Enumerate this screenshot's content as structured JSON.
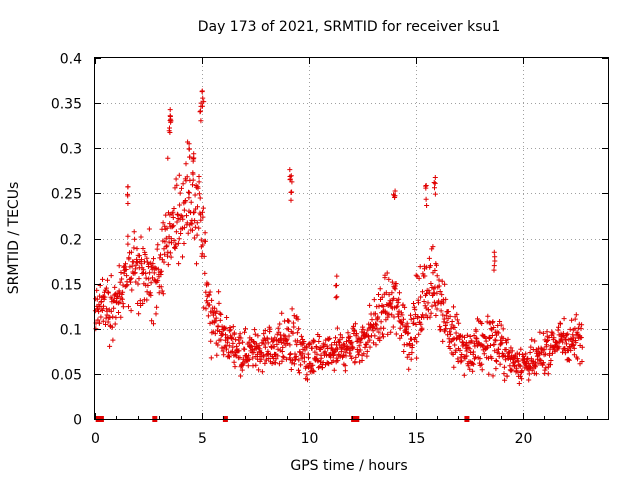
{
  "chart_data": {
    "type": "scatter",
    "title": "Day 173 of 2021, SRMTID for receiver ksu1",
    "xlabel": "GPS time / hours",
    "ylabel": "SRMTID / TECUs",
    "xlim": [
      0,
      24
    ],
    "ylim": [
      0,
      0.4
    ],
    "x_ticks": [
      0,
      5,
      10,
      15,
      20
    ],
    "x_tick_labels": [
      "0",
      "5",
      "10",
      "15",
      "20"
    ],
    "y_ticks": [
      0,
      0.05,
      0.1,
      0.15,
      0.2,
      0.25,
      0.3,
      0.35,
      0.4
    ],
    "y_tick_labels": [
      "0",
      "0.05",
      "0.1",
      "0.15",
      "0.2",
      "0.25",
      "0.3",
      "0.35",
      "0.4"
    ],
    "grid": true,
    "series_color": "#e00000",
    "marker": "plus",
    "trend": [
      {
        "x": 0.0,
        "y": 0.12,
        "spread": 0.03
      },
      {
        "x": 1.0,
        "y": 0.13,
        "spread": 0.04
      },
      {
        "x": 1.5,
        "y": 0.16,
        "spread": 0.05
      },
      {
        "x": 2.5,
        "y": 0.16,
        "spread": 0.05
      },
      {
        "x": 3.0,
        "y": 0.15,
        "spread": 0.06
      },
      {
        "x": 3.5,
        "y": 0.22,
        "spread": 0.07
      },
      {
        "x": 4.3,
        "y": 0.24,
        "spread": 0.06
      },
      {
        "x": 4.9,
        "y": 0.22,
        "spread": 0.07
      },
      {
        "x": 5.4,
        "y": 0.12,
        "spread": 0.04
      },
      {
        "x": 6.0,
        "y": 0.09,
        "spread": 0.03
      },
      {
        "x": 7.0,
        "y": 0.075,
        "spread": 0.025
      },
      {
        "x": 8.5,
        "y": 0.08,
        "spread": 0.03
      },
      {
        "x": 9.2,
        "y": 0.09,
        "spread": 0.05
      },
      {
        "x": 10.0,
        "y": 0.065,
        "spread": 0.025
      },
      {
        "x": 11.5,
        "y": 0.075,
        "spread": 0.03
      },
      {
        "x": 12.5,
        "y": 0.085,
        "spread": 0.03
      },
      {
        "x": 13.5,
        "y": 0.12,
        "spread": 0.04
      },
      {
        "x": 14.0,
        "y": 0.13,
        "spread": 0.05
      },
      {
        "x": 14.7,
        "y": 0.09,
        "spread": 0.04
      },
      {
        "x": 15.5,
        "y": 0.14,
        "spread": 0.06
      },
      {
        "x": 16.0,
        "y": 0.15,
        "spread": 0.05
      },
      {
        "x": 16.7,
        "y": 0.09,
        "spread": 0.04
      },
      {
        "x": 17.5,
        "y": 0.07,
        "spread": 0.03
      },
      {
        "x": 18.5,
        "y": 0.09,
        "spread": 0.04
      },
      {
        "x": 19.5,
        "y": 0.065,
        "spread": 0.025
      },
      {
        "x": 20.5,
        "y": 0.06,
        "spread": 0.025
      },
      {
        "x": 21.5,
        "y": 0.085,
        "spread": 0.03
      },
      {
        "x": 22.8,
        "y": 0.09,
        "spread": 0.03
      }
    ],
    "spikes": [
      {
        "x": 3.5,
        "y": 0.345
      },
      {
        "x": 3.55,
        "y": 0.34
      },
      {
        "x": 4.4,
        "y": 0.31
      },
      {
        "x": 4.6,
        "y": 0.3
      },
      {
        "x": 4.95,
        "y": 0.35
      },
      {
        "x": 5.05,
        "y": 0.365
      },
      {
        "x": 1.55,
        "y": 0.26
      },
      {
        "x": 9.15,
        "y": 0.28
      },
      {
        "x": 9.2,
        "y": 0.27
      },
      {
        "x": 14.0,
        "y": 0.255
      },
      {
        "x": 15.5,
        "y": 0.265
      },
      {
        "x": 15.9,
        "y": 0.275
      },
      {
        "x": 18.7,
        "y": 0.185
      },
      {
        "x": 11.3,
        "y": 0.16
      }
    ],
    "zero_markers_x": [
      0.15,
      0.3,
      2.8,
      6.1,
      12.1,
      12.25,
      17.4
    ],
    "n_samples": 1500
  }
}
